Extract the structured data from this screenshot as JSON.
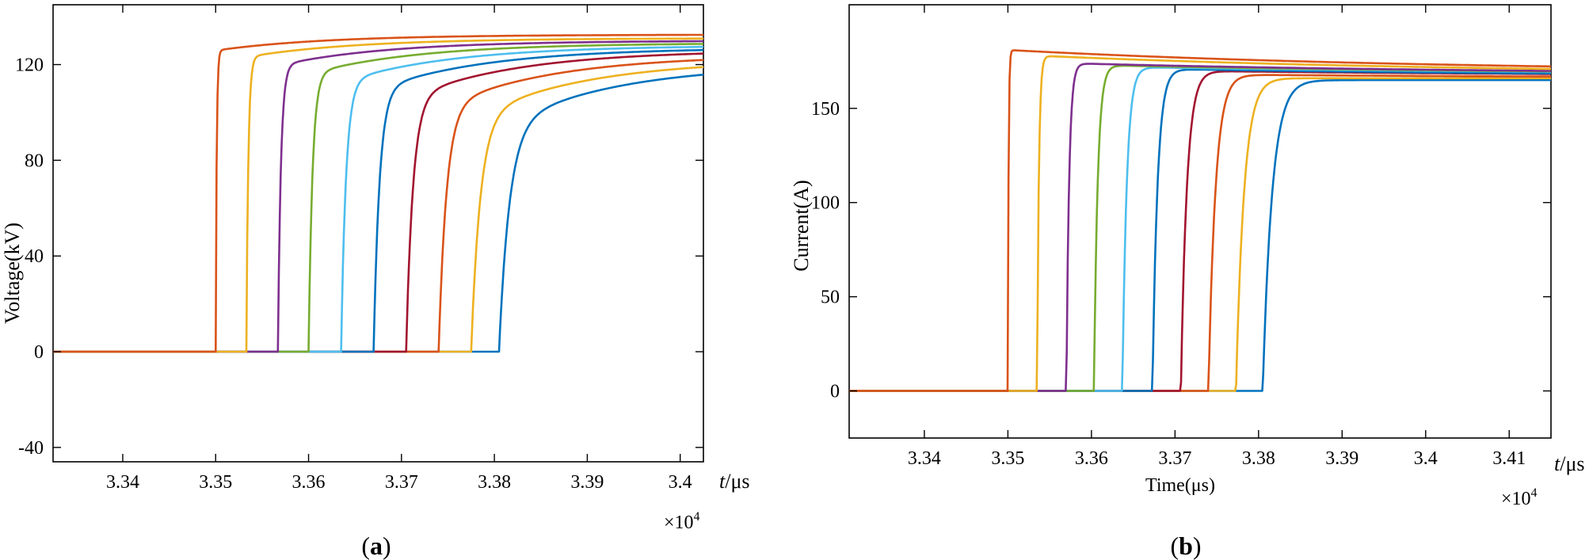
{
  "colors": [
    "#0072BD",
    "#EDB120",
    "#D95319",
    "#A2142F",
    "#0072BD",
    "#4DBEEE",
    "#77AC30",
    "#7E2F8E",
    "#EDB120",
    "#D95319"
  ],
  "chart_data": [
    {
      "type": "line",
      "panel_label_open": "(",
      "panel_label_letter": "a",
      "panel_label_close": ")",
      "xlabel": "",
      "ylabel": "Voltage(kV)",
      "x_unit_italic": "t",
      "x_unit_rest": "/μs",
      "x_multiplier_text": "×10",
      "x_multiplier_exp": "4",
      "xlim": [
        3.3325,
        3.4025
      ],
      "ylim": [
        -46,
        145
      ],
      "xticks": [
        3.34,
        3.35,
        3.36,
        3.37,
        3.38,
        3.39,
        3.4
      ],
      "xtick_labels": [
        "3.34",
        "3.35",
        "3.36",
        "3.37",
        "3.38",
        "3.39",
        "3.4"
      ],
      "yticks": [
        -40,
        0,
        40,
        80,
        120
      ],
      "ytick_labels": [
        "-40",
        "0",
        "40",
        "80",
        "120"
      ],
      "grid": false,
      "series_onsets": [
        3.3805,
        3.3775,
        3.374,
        3.3705,
        3.367,
        3.3635,
        3.36,
        3.3567,
        3.3533,
        3.35
      ],
      "series_end_values": [
        120,
        122,
        124,
        126,
        127,
        128,
        129,
        130,
        131,
        132.5
      ],
      "series_start_knee": [
        0.78,
        0.8,
        0.82,
        0.84,
        0.86,
        0.88,
        0.9,
        0.92,
        0.94,
        0.95
      ],
      "series_tau": [
        0.0032,
        0.0028,
        0.0024,
        0.0021,
        0.0018,
        0.0015,
        0.0012,
        0.0009,
        0.0006,
        0.0003
      ]
    },
    {
      "type": "line",
      "panel_label_open": "(",
      "panel_label_letter": "b",
      "panel_label_close": ")",
      "xlabel": "Time(μs)",
      "ylabel": "Current(A)",
      "x_unit_italic": "t",
      "x_unit_rest": "/μs",
      "x_multiplier_text": "×10",
      "x_multiplier_exp": "4",
      "xlim": [
        3.331,
        3.415
      ],
      "ylim": [
        -25,
        205
      ],
      "xticks": [
        3.34,
        3.35,
        3.36,
        3.37,
        3.38,
        3.39,
        3.4,
        3.41
      ],
      "xtick_labels": [
        "3.34",
        "3.35",
        "3.36",
        "3.37",
        "3.38",
        "3.39",
        "3.4",
        "3.41"
      ],
      "yticks": [
        0,
        50,
        100,
        150
      ],
      "ytick_labels": [
        "0",
        "50",
        "100",
        "150"
      ],
      "grid": false,
      "series_onsets": [
        3.3805,
        3.3773,
        3.374,
        3.3707,
        3.3673,
        3.3637,
        3.3603,
        3.357,
        3.3535,
        3.35
      ],
      "series_peak_values": [
        165,
        166,
        168,
        170,
        171,
        172,
        173,
        174,
        178,
        181
      ],
      "series_end_values": [
        165,
        166,
        166,
        167,
        167,
        168,
        168,
        168,
        168,
        169
      ],
      "series_tau": [
        0.0028,
        0.0024,
        0.0021,
        0.0018,
        0.0015,
        0.0013,
        0.0011,
        0.0008,
        0.0005,
        0.0002
      ]
    }
  ]
}
